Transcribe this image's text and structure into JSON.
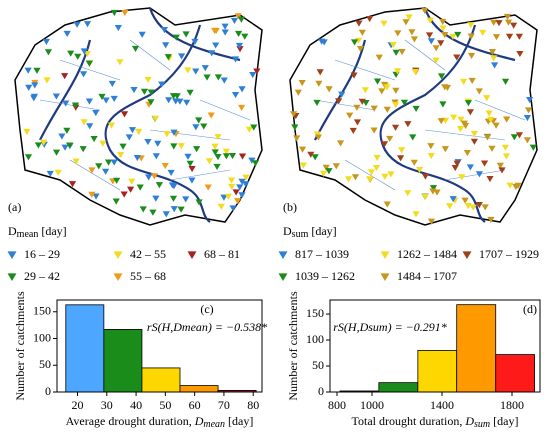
{
  "maps": [
    {
      "panel": "(a)",
      "legend_title": {
        "symbol": "D",
        "subscript": "mean",
        "unit": "[day]"
      },
      "legend": [
        {
          "label": "16 – 29",
          "color": "#2e7fd6"
        },
        {
          "label": "29 – 42",
          "color": "#1a8c1a"
        },
        {
          "label": "42 – 55",
          "color": "#f2dc1e"
        },
        {
          "label": "55 – 68",
          "color": "#f09a1a"
        },
        {
          "label": "68 – 81",
          "color": "#a82020"
        }
      ]
    },
    {
      "panel": "(b)",
      "legend_title": {
        "symbol": "D",
        "subscript": "sum",
        "unit": "[day]"
      },
      "legend": [
        {
          "label": "817 – 1039",
          "color": "#2e7fd6"
        },
        {
          "label": "1039 – 1262",
          "color": "#1a8c1a"
        },
        {
          "label": "1262 – 1484",
          "color": "#f2dc1e"
        },
        {
          "label": "1484 – 1707",
          "color": "#c8961a"
        },
        {
          "label": "1707 – 1929",
          "color": "#a0401a"
        }
      ]
    }
  ],
  "chart_data": [
    {
      "type": "histogram",
      "panel": "(c)",
      "annotation": "rS(H,Dmean) = −0.538*",
      "y_label": "Number of catchments",
      "x_label": {
        "text": "Average drought duration,",
        "symbol": "D",
        "subscript": "mean",
        "unit": "[day]"
      },
      "bins": [
        16,
        29,
        42,
        55,
        68,
        81
      ],
      "values": [
        163,
        117,
        45,
        12,
        3
      ],
      "colors": [
        "#4da6ff",
        "#1a8c1a",
        "#ffd700",
        "#ff9900",
        "#b22222"
      ],
      "xlim": [
        13,
        83
      ],
      "xticks": [
        20,
        30,
        40,
        50,
        60,
        70,
        80
      ],
      "ylim": [
        0,
        172
      ],
      "yticks": [
        0,
        50,
        100,
        150
      ]
    },
    {
      "type": "histogram",
      "panel": "(d)",
      "annotation": "rS(H,Dsum) = −0.291*",
      "y_label": "Number of catchments",
      "x_label": {
        "text": "Total drought duration,",
        "symbol": "D",
        "subscript": "sum",
        "unit": "[day]"
      },
      "bins": [
        817,
        1039,
        1262,
        1484,
        1707,
        1929
      ],
      "values": [
        2,
        18,
        80,
        168,
        72
      ],
      "colors": [
        "#5a2d0c",
        "#1a8c1a",
        "#ffd700",
        "#ff9900",
        "#ff1a1a"
      ],
      "xlim": [
        760,
        1960
      ],
      "xticks": [
        800,
        1000,
        1400,
        1800
      ],
      "ylim": [
        0,
        177
      ],
      "yticks": [
        0,
        50,
        100,
        150
      ]
    }
  ]
}
